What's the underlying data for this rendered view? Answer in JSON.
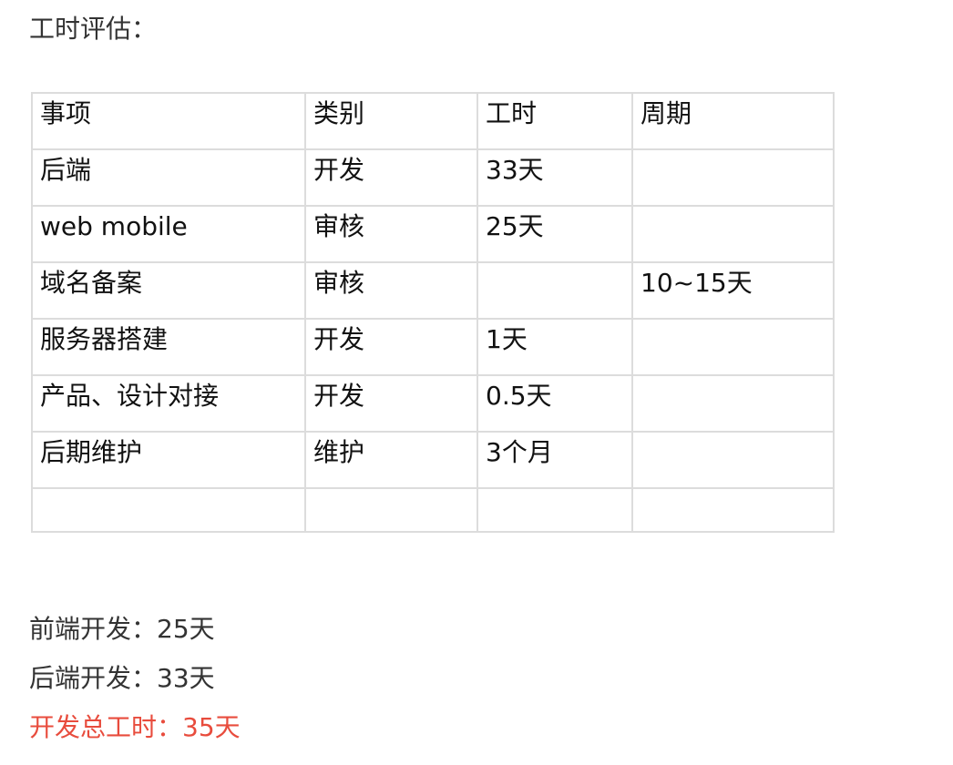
{
  "heading": "工时评估：",
  "colors": {
    "text": "#333333",
    "border": "#dcdcdc",
    "highlight": "#e84c3d"
  },
  "table": {
    "rows": [
      [
        "事项",
        "类别",
        "工时",
        "周期"
      ],
      [
        "后端",
        "开发",
        "33天",
        ""
      ],
      [
        "web mobile",
        "审核",
        "25天",
        ""
      ],
      [
        "域名备案",
        "审核",
        "",
        "10~15天"
      ],
      [
        "服务器搭建",
        "开发",
        "1天",
        ""
      ],
      [
        "产品、设计对接",
        "开发",
        "0.5天",
        ""
      ],
      [
        "后期维护",
        "维护",
        "3个月",
        ""
      ],
      [
        "",
        "",
        "",
        ""
      ]
    ]
  },
  "summary": {
    "frontend": "前端开发：25天",
    "backend": "后端开发：33天",
    "total": "开发总工时：35天"
  }
}
